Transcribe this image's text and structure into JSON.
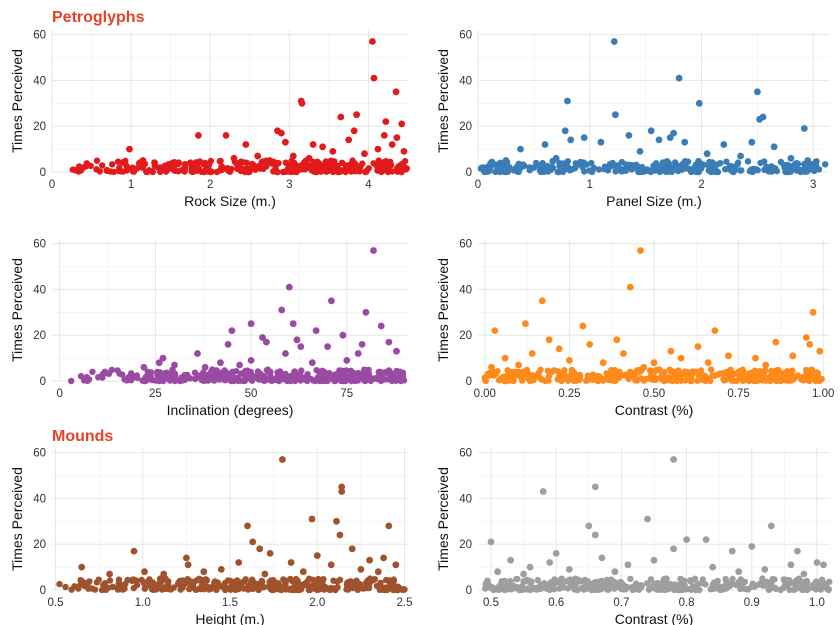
{
  "sections": {
    "petroglyphs": "Petroglyphs",
    "mounds": "Mounds"
  },
  "chart_data": [
    {
      "type": "scatter",
      "title": "",
      "xlabel": "Rock Size (m.)",
      "ylabel": "Times Perceived",
      "color": "#e31a1c",
      "xlim": [
        0,
        4.5
      ],
      "ylim": [
        0,
        62
      ],
      "xticks": [
        0,
        1,
        2,
        3,
        4
      ],
      "xtick_labels": [
        "0",
        "1",
        "2",
        "3",
        "4"
      ],
      "yticks": [
        0,
        20,
        40,
        60
      ],
      "points": [
        {
          "x": 4.05,
          "y": 57
        },
        {
          "x": 4.07,
          "y": 41
        },
        {
          "x": 4.35,
          "y": 35
        },
        {
          "x": 3.15,
          "y": 31
        },
        {
          "x": 3.16,
          "y": 30
        },
        {
          "x": 3.65,
          "y": 24
        },
        {
          "x": 3.85,
          "y": 25
        },
        {
          "x": 4.22,
          "y": 22
        },
        {
          "x": 4.42,
          "y": 21
        },
        {
          "x": 3.82,
          "y": 18
        },
        {
          "x": 2.85,
          "y": 18
        },
        {
          "x": 2.9,
          "y": 17
        },
        {
          "x": 1.85,
          "y": 16
        },
        {
          "x": 2.2,
          "y": 16
        },
        {
          "x": 4.2,
          "y": 16
        },
        {
          "x": 4.36,
          "y": 15
        },
        {
          "x": 3.75,
          "y": 14
        },
        {
          "x": 2.95,
          "y": 13
        },
        {
          "x": 3.3,
          "y": 12
        },
        {
          "x": 2.45,
          "y": 12
        },
        {
          "x": 4.3,
          "y": 12
        },
        {
          "x": 0.98,
          "y": 10
        },
        {
          "x": 3.42,
          "y": 11
        },
        {
          "x": 3.55,
          "y": 9
        },
        {
          "x": 4.12,
          "y": 10
        },
        {
          "x": 3.95,
          "y": 8
        },
        {
          "x": 2.6,
          "y": 7
        },
        {
          "x": 4.45,
          "y": 9
        },
        {
          "x": 2.3,
          "y": 6
        },
        {
          "x": 3.05,
          "y": 7
        },
        {
          "x": 1.15,
          "y": 5
        },
        {
          "x": 1.6,
          "y": 4
        },
        {
          "x": 2.75,
          "y": 5
        },
        {
          "x": 1.75,
          "y": 4
        },
        {
          "x": 3.25,
          "y": 6
        }
      ],
      "dense_band": {
        "x_min": 0.18,
        "x_max": 4.5,
        "y_max": 5,
        "n": 320,
        "ramp": 1.3
      }
    },
    {
      "type": "scatter",
      "title": "",
      "xlabel": "Panel Size (m.)",
      "ylabel": "Times Perceived",
      "color": "#3a7cb6",
      "xlim": [
        0,
        3.15
      ],
      "ylim": [
        0,
        62
      ],
      "xticks": [
        0,
        1,
        2,
        3
      ],
      "xtick_labels": [
        "0",
        "1",
        "2",
        "3"
      ],
      "yticks": [
        0,
        20,
        40,
        60
      ],
      "points": [
        {
          "x": 1.22,
          "y": 57
        },
        {
          "x": 1.8,
          "y": 41
        },
        {
          "x": 2.5,
          "y": 35
        },
        {
          "x": 0.8,
          "y": 31
        },
        {
          "x": 1.98,
          "y": 30
        },
        {
          "x": 1.23,
          "y": 25
        },
        {
          "x": 2.55,
          "y": 24
        },
        {
          "x": 2.52,
          "y": 23
        },
        {
          "x": 1.55,
          "y": 18
        },
        {
          "x": 1.75,
          "y": 17
        },
        {
          "x": 2.92,
          "y": 19
        },
        {
          "x": 0.78,
          "y": 18
        },
        {
          "x": 0.95,
          "y": 15
        },
        {
          "x": 1.35,
          "y": 16
        },
        {
          "x": 1.72,
          "y": 15
        },
        {
          "x": 0.83,
          "y": 14
        },
        {
          "x": 1.62,
          "y": 14
        },
        {
          "x": 1.1,
          "y": 13
        },
        {
          "x": 1.85,
          "y": 13
        },
        {
          "x": 2.45,
          "y": 13
        },
        {
          "x": 0.6,
          "y": 12
        },
        {
          "x": 2.2,
          "y": 12
        },
        {
          "x": 2.65,
          "y": 11
        },
        {
          "x": 0.38,
          "y": 10
        },
        {
          "x": 1.45,
          "y": 9
        },
        {
          "x": 2.05,
          "y": 8
        },
        {
          "x": 2.35,
          "y": 7
        },
        {
          "x": 0.7,
          "y": 6
        },
        {
          "x": 2.8,
          "y": 6
        },
        {
          "x": 0.25,
          "y": 5
        },
        {
          "x": 2.95,
          "y": 5
        }
      ],
      "dense_band": {
        "x_min": 0.02,
        "x_max": 3.12,
        "y_max": 5,
        "n": 300,
        "ramp": 0
      }
    },
    {
      "type": "scatter",
      "title": "",
      "xlabel": "Inclination (degrees)",
      "ylabel": "Times Perceived",
      "color": "#9a4aa3",
      "xlim": [
        -2,
        91
      ],
      "ylim": [
        0,
        62
      ],
      "xticks": [
        0,
        25,
        50,
        75
      ],
      "xtick_labels": [
        "0",
        "25",
        "50",
        "75"
      ],
      "yticks": [
        0,
        20,
        40,
        60
      ],
      "points": [
        {
          "x": 82,
          "y": 57
        },
        {
          "x": 60,
          "y": 41
        },
        {
          "x": 71,
          "y": 35
        },
        {
          "x": 58,
          "y": 31
        },
        {
          "x": 80,
          "y": 30
        },
        {
          "x": 61,
          "y": 25
        },
        {
          "x": 50,
          "y": 25
        },
        {
          "x": 84,
          "y": 24
        },
        {
          "x": 45,
          "y": 22
        },
        {
          "x": 67,
          "y": 22
        },
        {
          "x": 74,
          "y": 20
        },
        {
          "x": 53,
          "y": 19
        },
        {
          "x": 62,
          "y": 18
        },
        {
          "x": 86,
          "y": 17
        },
        {
          "x": 44,
          "y": 16
        },
        {
          "x": 54,
          "y": 17
        },
        {
          "x": 79,
          "y": 16
        },
        {
          "x": 63,
          "y": 15
        },
        {
          "x": 70,
          "y": 15
        },
        {
          "x": 88,
          "y": 13
        },
        {
          "x": 36,
          "y": 12
        },
        {
          "x": 59,
          "y": 12
        },
        {
          "x": 78,
          "y": 12
        },
        {
          "x": 27,
          "y": 10
        },
        {
          "x": 50,
          "y": 9
        },
        {
          "x": 75,
          "y": 9
        },
        {
          "x": 26,
          "y": 8
        },
        {
          "x": 42,
          "y": 8
        },
        {
          "x": 66,
          "y": 8
        },
        {
          "x": 30,
          "y": 7
        },
        {
          "x": 47,
          "y": 7
        },
        {
          "x": 22,
          "y": 6
        },
        {
          "x": 38,
          "y": 6
        }
      ],
      "dense_band": {
        "x_min": 0,
        "x_max": 90,
        "y_max": 5,
        "n": 340,
        "ramp": 1.6
      }
    },
    {
      "type": "scatter",
      "title": "",
      "xlabel": "Contrast (%)",
      "ylabel": "Times Perceived",
      "color": "#ff8a1c",
      "xlim": [
        -0.02,
        1.02
      ],
      "ylim": [
        0,
        62
      ],
      "xticks": [
        0,
        0.25,
        0.5,
        0.75,
        1
      ],
      "xtick_labels": [
        "0.00",
        "0.25",
        "0.50",
        "0.75",
        "1.00"
      ],
      "yticks": [
        0,
        20,
        40,
        60
      ],
      "points": [
        {
          "x": 0.46,
          "y": 57
        },
        {
          "x": 0.43,
          "y": 41
        },
        {
          "x": 0.17,
          "y": 35
        },
        {
          "x": 0.97,
          "y": 30
        },
        {
          "x": 0.12,
          "y": 25
        },
        {
          "x": 0.29,
          "y": 24
        },
        {
          "x": 0.03,
          "y": 22
        },
        {
          "x": 0.68,
          "y": 22
        },
        {
          "x": 0.95,
          "y": 19
        },
        {
          "x": 0.39,
          "y": 18
        },
        {
          "x": 0.19,
          "y": 18
        },
        {
          "x": 0.86,
          "y": 17
        },
        {
          "x": 0.96,
          "y": 16
        },
        {
          "x": 0.31,
          "y": 16
        },
        {
          "x": 0.63,
          "y": 15
        },
        {
          "x": 0.22,
          "y": 14
        },
        {
          "x": 0.55,
          "y": 13
        },
        {
          "x": 0.99,
          "y": 13
        },
        {
          "x": 0.14,
          "y": 12
        },
        {
          "x": 0.41,
          "y": 12
        },
        {
          "x": 0.72,
          "y": 11
        },
        {
          "x": 0.06,
          "y": 10
        },
        {
          "x": 0.58,
          "y": 10
        },
        {
          "x": 0.8,
          "y": 10
        },
        {
          "x": 0.91,
          "y": 11
        },
        {
          "x": 0.25,
          "y": 9
        },
        {
          "x": 0.5,
          "y": 8
        },
        {
          "x": 0.35,
          "y": 8
        },
        {
          "x": 0.66,
          "y": 8
        },
        {
          "x": 0.1,
          "y": 7
        },
        {
          "x": 0.83,
          "y": 7
        },
        {
          "x": 0.02,
          "y": 6
        },
        {
          "x": 0.47,
          "y": 6
        }
      ],
      "dense_band": {
        "x_min": 0,
        "x_max": 1,
        "y_max": 5,
        "n": 340,
        "ramp": 0
      }
    },
    {
      "type": "scatter",
      "title": "",
      "xlabel": "Height (m.)",
      "ylabel": "Times Perceived",
      "color": "#a0522d",
      "xlim": [
        0.48,
        2.52
      ],
      "ylim": [
        0,
        62
      ],
      "xticks": [
        0.5,
        1,
        1.5,
        2,
        2.5
      ],
      "xtick_labels": [
        "0.5",
        "1.0",
        "1.5",
        "2.0",
        "2.5"
      ],
      "yticks": [
        0,
        20,
        40,
        60
      ],
      "points": [
        {
          "x": 1.8,
          "y": 57
        },
        {
          "x": 2.14,
          "y": 45
        },
        {
          "x": 2.14,
          "y": 43
        },
        {
          "x": 1.97,
          "y": 31
        },
        {
          "x": 2.11,
          "y": 30
        },
        {
          "x": 1.6,
          "y": 28
        },
        {
          "x": 2.41,
          "y": 28
        },
        {
          "x": 2.13,
          "y": 24
        },
        {
          "x": 1.63,
          "y": 21
        },
        {
          "x": 2.2,
          "y": 18
        },
        {
          "x": 1.67,
          "y": 18
        },
        {
          "x": 0.95,
          "y": 17
        },
        {
          "x": 1.73,
          "y": 16
        },
        {
          "x": 2.0,
          "y": 15
        },
        {
          "x": 1.25,
          "y": 14
        },
        {
          "x": 2.38,
          "y": 14
        },
        {
          "x": 2.3,
          "y": 13
        },
        {
          "x": 1.55,
          "y": 12
        },
        {
          "x": 1.85,
          "y": 12
        },
        {
          "x": 1.26,
          "y": 11
        },
        {
          "x": 2.45,
          "y": 11
        },
        {
          "x": 2.08,
          "y": 11
        },
        {
          "x": 0.65,
          "y": 10
        },
        {
          "x": 1.45,
          "y": 9
        },
        {
          "x": 2.25,
          "y": 9
        },
        {
          "x": 1.01,
          "y": 8
        },
        {
          "x": 1.35,
          "y": 8
        },
        {
          "x": 1.92,
          "y": 8
        },
        {
          "x": 2.35,
          "y": 8
        },
        {
          "x": 0.81,
          "y": 7
        },
        {
          "x": 1.12,
          "y": 7
        },
        {
          "x": 1.7,
          "y": 7
        }
      ],
      "dense_band": {
        "x_min": 0.5,
        "x_max": 2.5,
        "y_max": 5,
        "n": 340,
        "ramp": 1.4
      }
    },
    {
      "type": "scatter",
      "title": "",
      "xlabel": "Contrast (%)",
      "ylabel": "Times Perceived",
      "color": "#9e9e9e",
      "xlim": [
        0.48,
        1.02
      ],
      "ylim": [
        0,
        62
      ],
      "xticks": [
        0.5,
        0.6,
        0.7,
        0.8,
        0.9,
        1
      ],
      "xtick_labels": [
        "0.5",
        "0.6",
        "0.7",
        "0.8",
        "0.9",
        "1.0"
      ],
      "yticks": [
        0,
        20,
        40,
        60
      ],
      "points": [
        {
          "x": 0.78,
          "y": 57
        },
        {
          "x": 0.66,
          "y": 45
        },
        {
          "x": 0.58,
          "y": 43
        },
        {
          "x": 0.74,
          "y": 31
        },
        {
          "x": 0.65,
          "y": 28
        },
        {
          "x": 0.93,
          "y": 28
        },
        {
          "x": 0.66,
          "y": 24
        },
        {
          "x": 0.8,
          "y": 22
        },
        {
          "x": 0.83,
          "y": 22
        },
        {
          "x": 0.5,
          "y": 21
        },
        {
          "x": 0.9,
          "y": 19
        },
        {
          "x": 0.78,
          "y": 18
        },
        {
          "x": 0.87,
          "y": 17
        },
        {
          "x": 0.97,
          "y": 17
        },
        {
          "x": 0.6,
          "y": 16
        },
        {
          "x": 0.67,
          "y": 14
        },
        {
          "x": 0.53,
          "y": 13
        },
        {
          "x": 0.75,
          "y": 13
        },
        {
          "x": 1.0,
          "y": 12
        },
        {
          "x": 0.59,
          "y": 12
        },
        {
          "x": 0.96,
          "y": 11
        },
        {
          "x": 0.71,
          "y": 11
        },
        {
          "x": 0.56,
          "y": 10
        },
        {
          "x": 0.84,
          "y": 10
        },
        {
          "x": 1.01,
          "y": 11
        },
        {
          "x": 0.62,
          "y": 9
        },
        {
          "x": 0.92,
          "y": 9
        },
        {
          "x": 0.51,
          "y": 8
        },
        {
          "x": 0.69,
          "y": 8
        },
        {
          "x": 0.88,
          "y": 8
        },
        {
          "x": 0.55,
          "y": 7
        },
        {
          "x": 0.98,
          "y": 7
        }
      ],
      "dense_band": {
        "x_min": 0.49,
        "x_max": 1.02,
        "y_max": 5,
        "n": 340,
        "ramp": 0
      }
    }
  ]
}
